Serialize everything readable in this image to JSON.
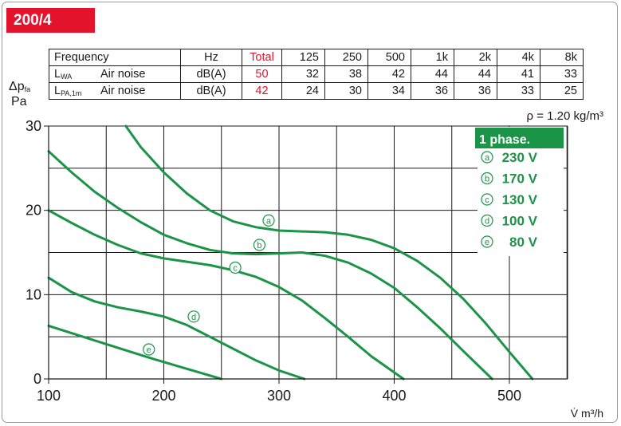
{
  "model": "200/4",
  "noise_table": {
    "header": {
      "name": "Frequency",
      "unit": "Hz",
      "total": "Total",
      "bands": [
        "125",
        "250",
        "500",
        "1k",
        "2k",
        "4k",
        "8k"
      ]
    },
    "rows": [
      {
        "symbol": "L",
        "symbol_sub": "WA",
        "name": "Air noise",
        "unit": "dB(A)",
        "total": "50",
        "bands": [
          "32",
          "38",
          "42",
          "44",
          "44",
          "41",
          "33"
        ]
      },
      {
        "symbol": "L",
        "symbol_sub": "PA,1m",
        "name": "Air noise",
        "unit": "dB(A)",
        "total": "42",
        "bands": [
          "24",
          "30",
          "34",
          "36",
          "36",
          "33",
          "25"
        ]
      }
    ]
  },
  "density_note": "ρ = 1.20 kg/m³",
  "legend": {
    "title": "1 phase.",
    "items": [
      {
        "marker": "a",
        "label": "230 V"
      },
      {
        "marker": "b",
        "label": "170 V"
      },
      {
        "marker": "c",
        "label": "130 V"
      },
      {
        "marker": "d",
        "label": "100 V"
      },
      {
        "marker": "e",
        "label": "80 V"
      }
    ]
  },
  "y_axis": {
    "symbol": "Δp",
    "sub": "fa",
    "unit": "Pa"
  },
  "x_axis": {
    "label": "V̇ m³/h"
  },
  "colors": {
    "curve": "#1c9447",
    "legend_title_bg": "#1c9447",
    "badge": "#e3132b",
    "grid": "#1a1a1a"
  },
  "chart_data": {
    "type": "line",
    "xlabel": "V̇ m³/h",
    "ylabel": "Δpfa Pa",
    "xlim": [
      100,
      540
    ],
    "ylim": [
      0,
      30
    ],
    "xticks": [
      100,
      200,
      300,
      400,
      500
    ],
    "yticks": [
      0,
      10,
      20,
      30
    ],
    "grid": true,
    "legend_position": "top-right",
    "series": [
      {
        "name": "230 V",
        "marker": "a",
        "x": [
          167,
          180,
          200,
          220,
          240,
          260,
          280,
          300,
          320,
          340,
          360,
          380,
          400,
          420,
          440,
          460,
          480,
          500,
          520
        ],
        "y": [
          30,
          27.5,
          24.5,
          22,
          20,
          18.7,
          18,
          17.6,
          17.5,
          17.4,
          17.1,
          16.5,
          15.5,
          14,
          12,
          9.5,
          6.5,
          3.2,
          0
        ]
      },
      {
        "name": "170 V",
        "marker": "b",
        "x": [
          100,
          120,
          140,
          160,
          180,
          200,
          220,
          240,
          260,
          280,
          300,
          320,
          340,
          360,
          380,
          400,
          420,
          440,
          460,
          485
        ],
        "y": [
          27,
          24.5,
          22.2,
          20.3,
          18.6,
          17.1,
          16.1,
          15.3,
          14.9,
          14.8,
          14.9,
          15,
          14.6,
          13.8,
          12.5,
          10.8,
          8.5,
          6,
          3.3,
          0
        ]
      },
      {
        "name": "130 V",
        "marker": "c",
        "x": [
          100,
          120,
          140,
          160,
          180,
          200,
          220,
          240,
          260,
          280,
          300,
          320,
          340,
          360,
          380,
          408
        ],
        "y": [
          20,
          18.5,
          17.1,
          15.9,
          14.9,
          14.3,
          13.9,
          13.5,
          12.9,
          12.1,
          10.9,
          9.3,
          7.2,
          5,
          2.7,
          0
        ]
      },
      {
        "name": "100 V",
        "marker": "d",
        "x": [
          100,
          120,
          140,
          160,
          180,
          200,
          220,
          240,
          260,
          280,
          300,
          322
        ],
        "y": [
          12,
          10.3,
          9.2,
          8.5,
          8,
          7.4,
          6.4,
          5,
          3.6,
          2.2,
          1,
          0
        ]
      },
      {
        "name": "80 V",
        "marker": "e",
        "x": [
          100,
          130,
          160,
          190,
          220,
          250
        ],
        "y": [
          6.3,
          5,
          3.7,
          2.4,
          1.2,
          0
        ]
      }
    ],
    "curve_labels": [
      {
        "marker": "a",
        "x": 291,
        "y": 18.8
      },
      {
        "marker": "b",
        "x": 283,
        "y": 15.9
      },
      {
        "marker": "c",
        "x": 262,
        "y": 13.2
      },
      {
        "marker": "d",
        "x": 226,
        "y": 7.4
      },
      {
        "marker": "e",
        "x": 187,
        "y": 3.5
      }
    ]
  }
}
